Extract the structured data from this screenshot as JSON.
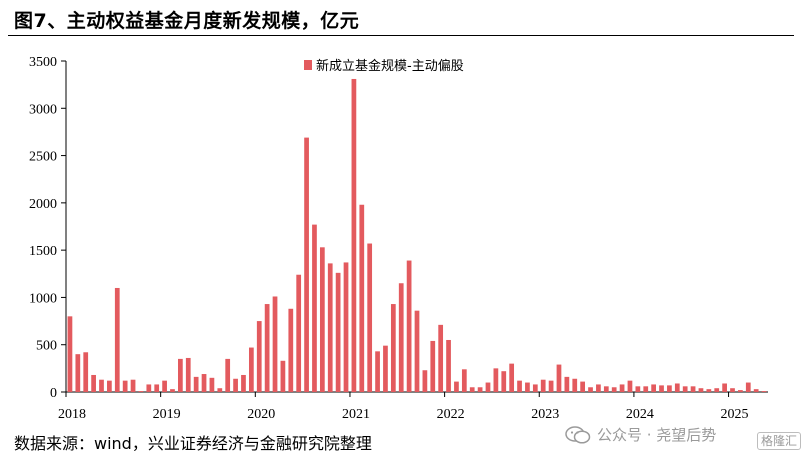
{
  "title": "图7、主动权益基金月度新发规模，亿元",
  "source": "数据来源：wind，兴业证券经济与金融研究院整理",
  "watermark": {
    "text": "公众号 · 尧望后势",
    "icon": "wechat-icon"
  },
  "badge": "格隆汇",
  "colors": {
    "bar": "#e35a5e",
    "axis": "#000000",
    "watermark": "#9a9a9a"
  },
  "chart_data": {
    "type": "bar",
    "title": "",
    "xlabel": "",
    "ylabel": "",
    "ylim": [
      0,
      3500
    ],
    "yticks": [
      0,
      500,
      1000,
      1500,
      2000,
      2500,
      3000,
      3500
    ],
    "grid": false,
    "legend": {
      "position": "top-center"
    },
    "x_tick_labels": [
      "2018",
      "2019",
      "2020",
      "2021",
      "2022",
      "2023",
      "2024",
      "2025"
    ],
    "series": [
      {
        "name": "新成立基金规模-主动偏股",
        "categories": [
          "2018-01",
          "2018-02",
          "2018-03",
          "2018-04",
          "2018-05",
          "2018-06",
          "2018-07",
          "2018-08",
          "2018-09",
          "2018-10",
          "2018-11",
          "2018-12",
          "2019-01",
          "2019-02",
          "2019-03",
          "2019-04",
          "2019-05",
          "2019-06",
          "2019-07",
          "2019-08",
          "2019-09",
          "2019-10",
          "2019-11",
          "2019-12",
          "2020-01",
          "2020-02",
          "2020-03",
          "2020-04",
          "2020-05",
          "2020-06",
          "2020-07",
          "2020-08",
          "2020-09",
          "2020-10",
          "2020-11",
          "2020-12",
          "2021-01",
          "2021-02",
          "2021-03",
          "2021-04",
          "2021-05",
          "2021-06",
          "2021-07",
          "2021-08",
          "2021-09",
          "2021-10",
          "2021-11",
          "2021-12",
          "2022-01",
          "2022-02",
          "2022-03",
          "2022-04",
          "2022-05",
          "2022-06",
          "2022-07",
          "2022-08",
          "2022-09",
          "2022-10",
          "2022-11",
          "2022-12",
          "2023-01",
          "2023-02",
          "2023-03",
          "2023-04",
          "2023-05",
          "2023-06",
          "2023-07",
          "2023-08",
          "2023-09",
          "2023-10",
          "2023-11",
          "2023-12",
          "2024-01",
          "2024-02",
          "2024-03",
          "2024-04",
          "2024-05",
          "2024-06",
          "2024-07",
          "2024-08",
          "2024-09",
          "2024-10",
          "2024-11",
          "2024-12",
          "2025-01",
          "2025-02",
          "2025-03",
          "2025-04",
          "2025-05"
        ],
        "values": [
          800,
          400,
          420,
          180,
          130,
          120,
          1100,
          120,
          130,
          10,
          80,
          80,
          120,
          30,
          350,
          360,
          160,
          190,
          150,
          40,
          350,
          140,
          180,
          470,
          750,
          930,
          1010,
          330,
          880,
          1240,
          2690,
          1770,
          1530,
          1360,
          1260,
          1370,
          3310,
          1980,
          1570,
          430,
          490,
          930,
          1150,
          1390,
          860,
          230,
          540,
          710,
          550,
          110,
          240,
          50,
          50,
          100,
          250,
          220,
          300,
          120,
          100,
          80,
          130,
          120,
          290,
          160,
          140,
          110,
          50,
          80,
          60,
          50,
          80,
          120,
          60,
          60,
          80,
          70,
          70,
          90,
          60,
          60,
          40,
          30,
          40,
          90,
          40,
          20,
          100,
          30,
          10
        ]
      }
    ]
  }
}
